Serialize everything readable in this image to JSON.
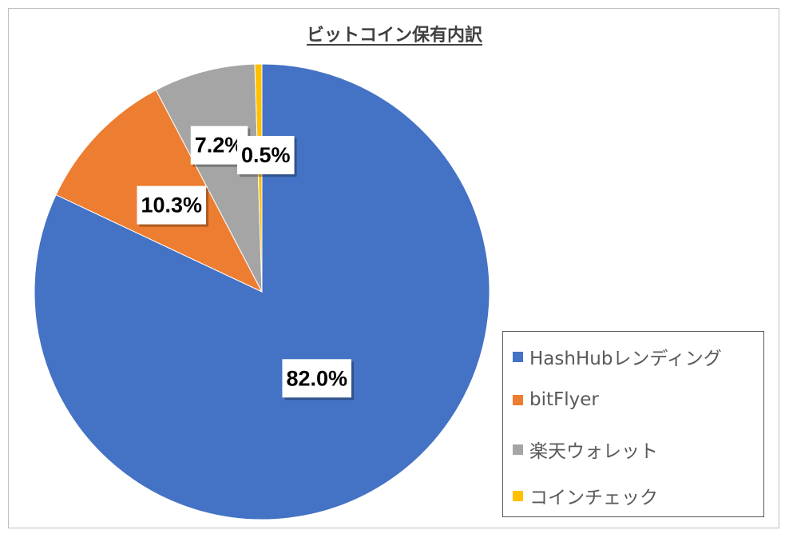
{
  "chart_data": {
    "type": "pie",
    "title": "ビットコイン保有内訳",
    "categories": [
      "HashHubレンディング",
      "bitFlyer",
      "楽天ウォレット",
      "コインチェック"
    ],
    "values": [
      82.0,
      10.3,
      7.2,
      0.5
    ],
    "data_labels": [
      "82.0%",
      "10.3%",
      "7.2%",
      "0.5%"
    ],
    "colors": [
      "#4472C4",
      "#ED7D31",
      "#A5A5A5",
      "#FFC000"
    ],
    "start_angle": "12 o'clock",
    "direction": "clockwise",
    "legend_position": "right-bottom"
  }
}
